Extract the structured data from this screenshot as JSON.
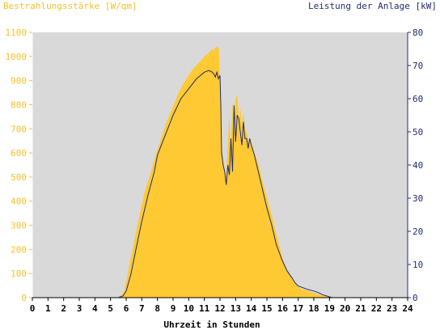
{
  "chart_data": {
    "type": "area",
    "title_left": "Bestrahlungsstärke [W/qm]",
    "title_right": "Leistung der Anlage [kW]",
    "xlabel": "Uhrzeit in Stunden",
    "xlim": [
      0,
      24
    ],
    "y_left_lim": [
      0,
      1100
    ],
    "y_right_lim": [
      0,
      80
    ],
    "x_ticks": [
      "0",
      "1",
      "2",
      "3",
      "4",
      "5",
      "6",
      "7",
      "8",
      "9",
      "10",
      "11",
      "12",
      "13",
      "14",
      "15",
      "16",
      "17",
      "18",
      "19",
      "20",
      "21",
      "22",
      "23",
      "24"
    ],
    "y_left_ticks": [
      "0",
      "100",
      "200",
      "300",
      "400",
      "500",
      "600",
      "700",
      "800",
      "900",
      "1000",
      "1100"
    ],
    "y_right_ticks": [
      "0",
      "10",
      "20",
      "30",
      "40",
      "50",
      "60",
      "70",
      "80"
    ],
    "grid": false,
    "colors": {
      "plot_background": "#d9d9d9",
      "irradiance": "#ffc933",
      "power": "#1f2d6b",
      "left_axis_text": "#f5c02a",
      "right_axis_text": "#1f2d6b"
    },
    "series": [
      {
        "axis": "left",
        "kind": "area",
        "x": [
          5.5,
          5.7,
          5.9,
          6.0,
          6.2,
          6.4,
          6.6,
          6.8,
          7.0,
          7.2,
          7.4,
          7.6,
          7.8,
          8.0,
          8.3,
          8.6,
          9.0,
          9.3,
          9.6,
          10.0,
          10.3,
          10.6,
          10.9,
          11.0,
          11.2,
          11.4,
          11.5,
          11.6,
          11.7,
          11.8,
          11.9,
          12.0,
          12.1,
          12.2,
          12.3,
          12.4,
          12.5,
          12.6,
          12.7,
          12.8,
          12.9,
          13.0,
          13.1,
          13.2,
          13.3,
          13.4,
          13.5,
          13.6,
          13.7,
          13.8,
          13.9,
          14.0,
          14.2,
          14.4,
          14.6,
          14.8,
          15.0,
          15.3,
          15.6,
          16.0,
          16.3,
          16.6,
          16.8,
          17.0,
          17.2,
          17.5,
          17.8,
          18.0,
          18.3,
          18.6,
          18.9,
          19.1,
          19.3
        ],
        "y": [
          0,
          10,
          30,
          60,
          130,
          190,
          260,
          320,
          380,
          440,
          480,
          520,
          570,
          610,
          670,
          730,
          790,
          840,
          880,
          920,
          950,
          970,
          990,
          1000,
          1010,
          1020,
          1030,
          1025,
          1035,
          1040,
          1035,
          900,
          620,
          560,
          520,
          480,
          620,
          740,
          600,
          800,
          660,
          820,
          840,
          730,
          780,
          700,
          760,
          680,
          690,
          640,
          660,
          640,
          600,
          560,
          510,
          460,
          410,
          340,
          260,
          160,
          110,
          80,
          60,
          45,
          35,
          30,
          22,
          18,
          12,
          8,
          4,
          1,
          0
        ]
      },
      {
        "axis": "right",
        "kind": "line",
        "x": [
          5.5,
          5.8,
          6.0,
          6.3,
          6.6,
          7.0,
          7.4,
          7.8,
          8.0,
          8.5,
          9.0,
          9.5,
          10.0,
          10.5,
          11.0,
          11.3,
          11.5,
          11.6,
          11.7,
          11.8,
          11.9,
          12.0,
          12.05,
          12.1,
          12.2,
          12.3,
          12.4,
          12.5,
          12.6,
          12.7,
          12.8,
          12.9,
          13.0,
          13.1,
          13.2,
          13.3,
          13.4,
          13.5,
          13.6,
          13.7,
          13.8,
          13.9,
          14.0,
          14.2,
          14.4,
          14.6,
          14.8,
          15.0,
          15.3,
          15.6,
          16.0,
          16.3,
          16.6,
          16.8,
          17.0,
          17.3,
          17.6,
          18.0,
          18.3,
          18.6,
          18.9,
          19.1,
          19.2
        ],
        "y": [
          0,
          0.5,
          2,
          7,
          14,
          23,
          31,
          38,
          43,
          49,
          55,
          60,
          63,
          66,
          68,
          68.5,
          68,
          67.5,
          66.5,
          68,
          66,
          67,
          58,
          44,
          40,
          38,
          34,
          40,
          37,
          48,
          38,
          58,
          47,
          55,
          54,
          50,
          46,
          53,
          48,
          48,
          45,
          48,
          46,
          43,
          39,
          35,
          31,
          27,
          22,
          16,
          11,
          8,
          6,
          4.5,
          3.5,
          3,
          2.5,
          2,
          1.5,
          0.8,
          0.4,
          0.1,
          0
        ]
      }
    ]
  }
}
